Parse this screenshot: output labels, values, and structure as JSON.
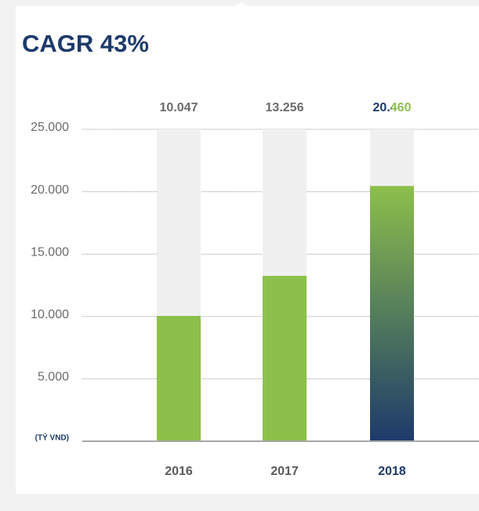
{
  "chart_data": {
    "type": "bar",
    "title": "CAGR 43%",
    "categories": [
      "2016",
      "2017",
      "2018"
    ],
    "values": [
      10047,
      13256,
      20460
    ],
    "value_labels": [
      "10.047",
      "13.256",
      "20.460"
    ],
    "color": "#8cc04b",
    "highlight_color": "#1d3a6b",
    "unit_label": "(TỶ VND)",
    "ylim": [
      0,
      25000
    ],
    "yticks": [
      {
        "value": 5000,
        "label": "5.000"
      },
      {
        "value": 10000,
        "label": "10.000"
      },
      {
        "value": 15000,
        "label": "15.000"
      },
      {
        "value": 20000,
        "label": "20.000"
      },
      {
        "value": 25000,
        "label": "25.000"
      }
    ],
    "grid": true
  }
}
